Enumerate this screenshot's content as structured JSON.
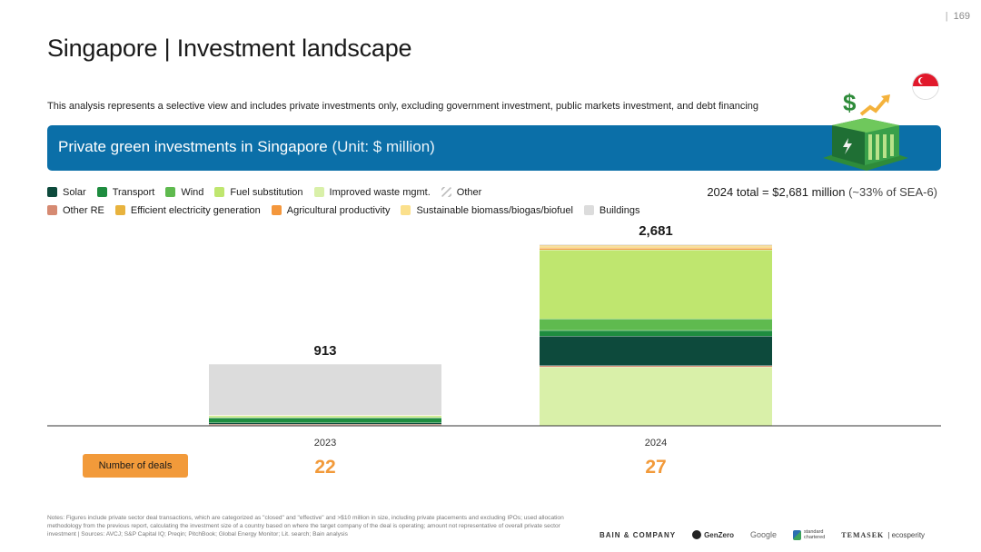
{
  "page": {
    "number": "169",
    "separator": "|"
  },
  "header": {
    "title": "Singapore | Investment landscape",
    "subtitle": "This analysis represents a selective view and includes private investments only, excluding government investment, public markets investment, and debt financing"
  },
  "banner": {
    "text": "Private green investments in Singapore",
    "unit": "(Unit: $ million)",
    "bg_color": "#0b6fa8"
  },
  "icons": {
    "flag": "singapore-flag-icon",
    "banner": "green-investment-icon",
    "other_pattern": "hatched-swatch-icon"
  },
  "total": {
    "main": "2024 total = $2,681 million",
    "note": "(~33% of SEA-6)"
  },
  "legend": {
    "row1": [
      {
        "label": "Solar",
        "color": "#0d4a3c"
      },
      {
        "label": "Transport",
        "color": "#1e8c3f"
      },
      {
        "label": "Wind",
        "color": "#5fba4f"
      },
      {
        "label": "Fuel substitution",
        "color": "#bfe66f"
      },
      {
        "label": "Improved waste mgmt.",
        "color": "#d9f0a9"
      },
      {
        "label": "Other",
        "color": "#cfcfcf"
      }
    ],
    "row2": [
      {
        "label": "Other RE",
        "color": "#d68a72"
      },
      {
        "label": "Efficient electricity generation",
        "color": "#e8b33e"
      },
      {
        "label": "Agricultural productivity",
        "color": "#f4973c"
      },
      {
        "label": "Sustainable biomass/biogas/biofuel",
        "color": "#fbe08c"
      },
      {
        "label": "Buildings",
        "color": "#dcdcdc"
      }
    ]
  },
  "chart_data": {
    "type": "bar",
    "stacked": true,
    "title": "Private green investments in Singapore (Unit: $ million)",
    "categories": [
      "2023",
      "2024"
    ],
    "ylim": [
      0,
      2900
    ],
    "totals": [
      "913",
      "2,681"
    ],
    "total_values": [
      913,
      2681
    ],
    "series": [
      {
        "name": "Improved waste mgmt.",
        "color": "#d9f0a9",
        "values": [
          10,
          870
        ]
      },
      {
        "name": "Other RE",
        "color": "#d68a72",
        "values": [
          15,
          20
        ]
      },
      {
        "name": "Solar",
        "color": "#0d4a3c",
        "values": [
          20,
          435
        ]
      },
      {
        "name": "Transport",
        "color": "#1e8c3f",
        "values": [
          75,
          85
        ]
      },
      {
        "name": "Wind",
        "color": "#5fba4f",
        "values": [
          5,
          170
        ]
      },
      {
        "name": "Fuel substitution",
        "color": "#bfe66f",
        "values": [
          25,
          1020
        ]
      },
      {
        "name": "Agricultural productivity",
        "color": "#f4973c",
        "values": [
          5,
          25
        ]
      },
      {
        "name": "Sustainable biomass/biogas/biofuel",
        "color": "#fbe08c",
        "values": [
          5,
          25
        ]
      },
      {
        "name": "Efficient electricity generation",
        "color": "#e8b33e",
        "values": [
          0,
          16
        ]
      },
      {
        "name": "Buildings",
        "color": "#dcdcdc",
        "values": [
          753,
          15
        ]
      }
    ],
    "deals": {
      "label": "Number of deals",
      "values": [
        "22",
        "27"
      ],
      "color": "#f29a3a"
    }
  },
  "notes": "Notes: Figures include private sector deal transactions, which are categorized as \"closed\" and \"effective\" and >$10 million in size, including private placements and excluding IPOs; used allocation methodology from the previous report, calculating the investment size of a country based on where the target company of the deal is operating; amount not representative of overall private sector investment | Sources: AVCJ; S&P Capital IQ; Preqin; PitchBook; Global Energy Monitor; Lit. search; Bain analysis",
  "logos": {
    "bain": "BAIN & COMPANY",
    "genzero": "GenZero",
    "google": "Google",
    "sc_line1": "standard",
    "sc_line2": "chartered",
    "temasek": "TEMASEK",
    "ecosperity": "| ecosperity"
  }
}
